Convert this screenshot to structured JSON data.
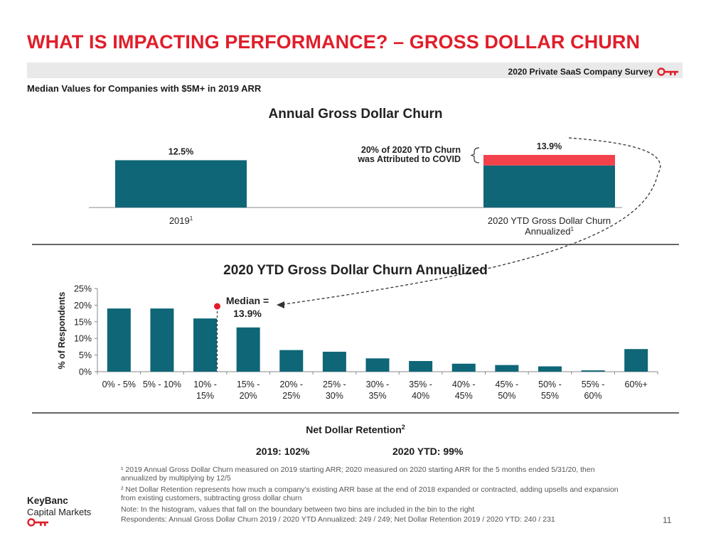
{
  "header": {
    "title": "WHAT IS IMPACTING PERFORMANCE? – GROSS DOLLAR CHURN",
    "survey_label": "2020 Private SaaS Company Survey",
    "subtitle": "Median Values for Companies with $5M+ in 2019 ARR"
  },
  "colors": {
    "accent_red": "#e01e2a",
    "bar_teal": "#0e6677",
    "covid_red": "#f2414a"
  },
  "chart_data": [
    {
      "type": "bar",
      "title": "Annual Gross Dollar Churn",
      "categories": [
        "2019",
        "2020 YTD Gross Dollar Churn Annualized"
      ],
      "category_footnotes": [
        "1",
        "1"
      ],
      "values": [
        12.5,
        13.9
      ],
      "data_labels": [
        "12.5%",
        "13.9%"
      ],
      "covid_share_of_2020": 0.2,
      "annotation": "20% of 2020 YTD Churn was Attributed to COVID",
      "annotation_lines": [
        "20% of 2020 YTD Churn",
        "was Attributed to COVID"
      ]
    },
    {
      "type": "bar",
      "title": "2020 YTD Gross Dollar Churn Annualized",
      "ylabel": "% of Respondents",
      "ylim": [
        0,
        25
      ],
      "yticks": [
        "0%",
        "5%",
        "10%",
        "15%",
        "20%",
        "25%"
      ],
      "categories": [
        [
          "0% - 5%"
        ],
        [
          "5% - 10%"
        ],
        [
          "10% -",
          "15%"
        ],
        [
          "15% -",
          "20%"
        ],
        [
          "20% -",
          "25%"
        ],
        [
          "25% -",
          "30%"
        ],
        [
          "30% -",
          "35%"
        ],
        [
          "35% -",
          "40%"
        ],
        [
          "40% -",
          "45%"
        ],
        [
          "45% -",
          "50%"
        ],
        [
          "50% -",
          "55%"
        ],
        [
          "55% -",
          "60%"
        ],
        [
          "60%+"
        ]
      ],
      "values": [
        19,
        19,
        16,
        13.3,
        6.5,
        6,
        4,
        3.2,
        2.4,
        2,
        1.6,
        0.4,
        6.8
      ],
      "median_label": [
        "Median =",
        "13.9%"
      ],
      "median_value": 13.9
    }
  ],
  "ndr": {
    "title": "Net Dollar Retention",
    "title_sup": "2",
    "val_2019": "2019: 102%",
    "val_2020": "2020 YTD: 99%"
  },
  "footnotes": {
    "fn1": "¹ 2019 Annual Gross Dollar Churn measured on 2019 starting ARR; 2020 measured on 2020 starting ARR for the 5 months ended 5/31/20, then annualized by multiplying by 12/5",
    "fn2": "² Net Dollar Retention represents how much a company’s existing ARR base at the end of 2018 expanded or contracted, adding upsells and expansion from existing customers, subtracting gross dollar churn",
    "note": "Note: In the histogram, values that fall on the boundary between two bins are included in the bin to the right",
    "respondents": "Respondents: Annual Gross Dollar Churn 2019 / 2020 YTD Annualized: 249 / 249; Net Dollar Retention 2019 / 2020 YTD: 240 / 231"
  },
  "logo": {
    "line1": "KeyBanc",
    "line2": "Capital Markets"
  },
  "page_number": "11"
}
